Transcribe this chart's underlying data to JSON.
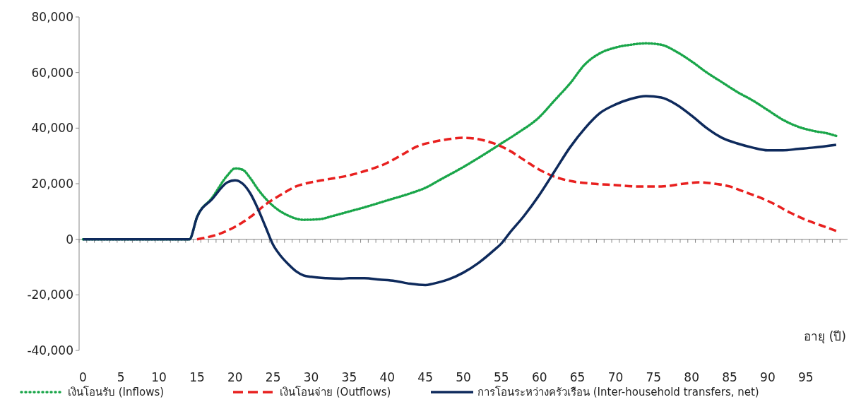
{
  "chart_data": {
    "type": "line",
    "xlabel": "อายุ (ปี)",
    "xlim": [
      -0.5,
      100.5
    ],
    "xticks": [
      0,
      5,
      10,
      15,
      20,
      25,
      30,
      35,
      40,
      45,
      50,
      55,
      60,
      65,
      70,
      75,
      80,
      85,
      90,
      95
    ],
    "ylim": [
      -40000,
      80000
    ],
    "yticks": [
      {
        "value": -40000,
        "label": "-40,000"
      },
      {
        "value": -20000,
        "label": "-20,000"
      },
      {
        "value": 0,
        "label": "0"
      },
      {
        "value": 20000,
        "label": "20,000"
      },
      {
        "value": 40000,
        "label": "40,000"
      },
      {
        "value": 60000,
        "label": "60,000"
      },
      {
        "value": 80000,
        "label": "80,000"
      }
    ],
    "legend": "bottom",
    "series": [
      {
        "name": "เงินโอนรับ (Inflows)",
        "color": "#1aa64a",
        "line_style": "dotted",
        "x": [
          0,
          14,
          15,
          17,
          19,
          20,
          21,
          22,
          23,
          25,
          27,
          29,
          31,
          33,
          35,
          37,
          40,
          43,
          45,
          47,
          50,
          53,
          55,
          57,
          60,
          62,
          64,
          66,
          68,
          70,
          72,
          74,
          76,
          78,
          80,
          82,
          84,
          86,
          88,
          90,
          92,
          94,
          96,
          98,
          99
        ],
        "values": [
          0,
          0,
          8000,
          15000,
          23000,
          25500,
          25000,
          22000,
          18000,
          12000,
          8500,
          7000,
          7200,
          8500,
          10000,
          11500,
          14000,
          16500,
          18500,
          21500,
          26000,
          31000,
          34500,
          38000,
          44000,
          50000,
          56000,
          63000,
          67000,
          69000,
          70000,
          70500,
          70000,
          67500,
          64000,
          60000,
          56500,
          53000,
          50000,
          46500,
          43000,
          40500,
          39000,
          38000,
          37200
        ]
      },
      {
        "name": "เงินโอนจ่าย (Outflows)",
        "color": "#e8201f",
        "line_style": "dashed",
        "x": [
          15,
          16,
          18,
          20,
          22,
          24,
          26,
          28,
          30,
          32,
          35,
          37,
          40,
          42,
          44,
          46,
          48,
          50,
          52,
          54,
          56,
          58,
          60,
          62,
          64,
          67,
          70,
          73,
          76,
          79,
          81,
          83,
          85,
          87,
          89,
          91,
          93,
          95,
          97,
          99
        ],
        "values": [
          0,
          500,
          2000,
          4500,
          8000,
          12500,
          16000,
          19000,
          20500,
          21500,
          23000,
          24500,
          27500,
          30500,
          33500,
          35000,
          36000,
          36500,
          36000,
          34500,
          32000,
          28500,
          25000,
          22500,
          21000,
          20000,
          19500,
          19000,
          19000,
          20000,
          20500,
          20000,
          19000,
          17000,
          15000,
          12500,
          9500,
          7000,
          5000,
          3000
        ]
      },
      {
        "name": "การโอนระหว่างครัวเรือน (Inter-household transfers, net)",
        "color": "#0e2a5c",
        "line_style": "solid",
        "x": [
          0,
          14,
          15,
          17,
          19,
          20,
          21,
          22,
          23,
          24,
          25,
          26,
          27,
          28,
          29,
          30,
          32,
          34,
          35,
          37,
          39,
          41,
          43,
          45,
          46,
          48,
          50,
          52,
          54,
          55,
          56,
          58,
          60,
          62,
          64,
          66,
          68,
          70,
          72,
          74,
          76,
          78,
          80,
          82,
          84,
          86,
          88,
          90,
          92,
          94,
          96,
          99
        ],
        "values": [
          0,
          0,
          8000,
          14500,
          20500,
          21200,
          20000,
          16500,
          11000,
          4500,
          -2000,
          -6000,
          -9000,
          -11500,
          -13000,
          -13500,
          -14000,
          -14200,
          -14000,
          -14000,
          -14500,
          -15000,
          -16000,
          -16500,
          -16000,
          -14500,
          -12000,
          -8500,
          -4000,
          -1500,
          2000,
          8500,
          16000,
          24500,
          33000,
          40000,
          45500,
          48500,
          50500,
          51500,
          51000,
          48500,
          44500,
          40000,
          36500,
          34500,
          33000,
          32000,
          32000,
          32500,
          33000,
          34000
        ]
      }
    ]
  }
}
